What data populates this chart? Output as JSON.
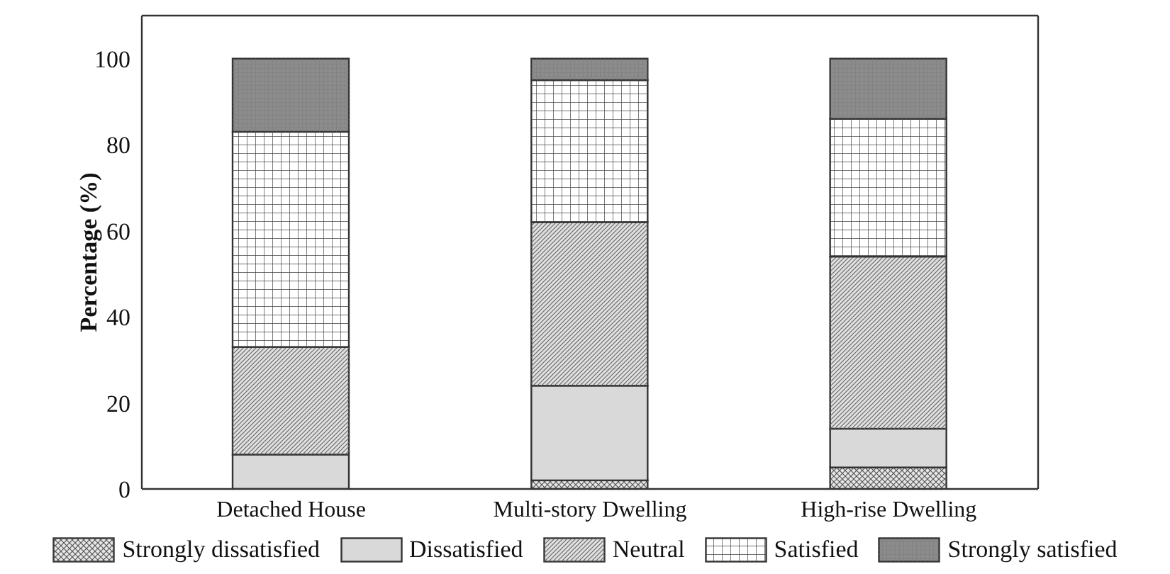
{
  "chart_data": {
    "type": "bar",
    "ylabel": "Percentage (%)",
    "categories": [
      "Detached House",
      "Multi-story Dwelling",
      "High-rise Dwelling"
    ],
    "series": [
      {
        "name": "Strongly dissatisfied",
        "color": "#e6e6e6",
        "values": [
          0,
          2,
          5
        ]
      },
      {
        "name": "Dissatisfied",
        "color": "#d9d9d9",
        "values": [
          8,
          22,
          9
        ]
      },
      {
        "name": "Neutral",
        "color": "#e0e0e0",
        "values": [
          25,
          38,
          40
        ]
      },
      {
        "name": "Satisfied",
        "color": "#ffffff",
        "values": [
          50,
          33,
          32
        ]
      },
      {
        "name": "Strongly satisfied",
        "color": "#8c8c8c",
        "values": [
          17,
          5,
          14
        ]
      }
    ],
    "stacked": true,
    "ylim": [
      0,
      110
    ],
    "yticks": [
      0,
      20,
      40,
      60,
      80,
      100
    ],
    "legend": "bottom"
  }
}
